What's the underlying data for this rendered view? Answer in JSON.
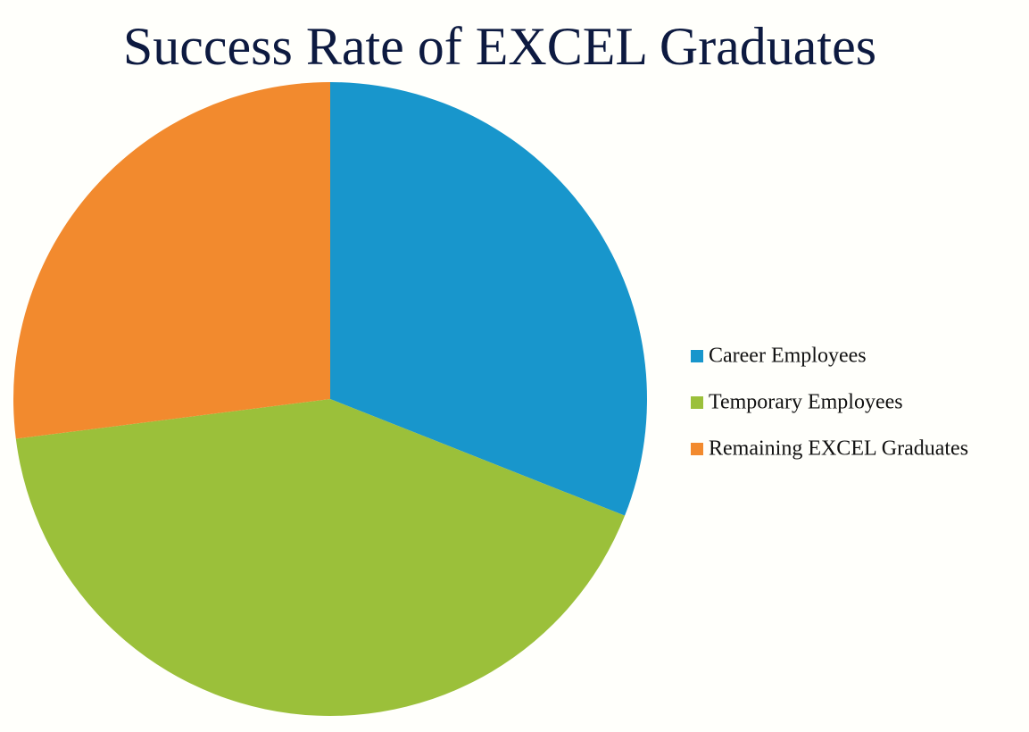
{
  "chart_data": {
    "type": "pie",
    "title": "Success Rate of EXCEL Graduates",
    "categories": [
      "Career Employees",
      "Temporary Employees",
      "Remaining EXCEL Graduates"
    ],
    "values": [
      31,
      42,
      27
    ],
    "colors": [
      "#1896cc",
      "#9bc03a",
      "#f28a2e"
    ],
    "legend": "right"
  }
}
